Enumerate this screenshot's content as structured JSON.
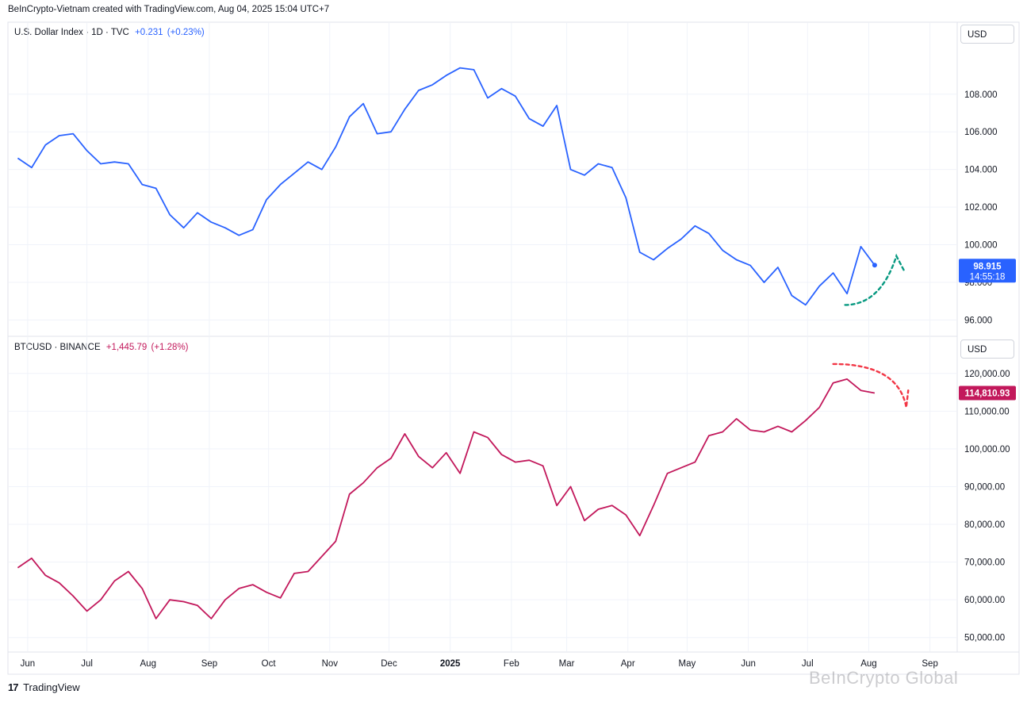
{
  "attribution": "BeInCrypto-Vietnam created with TradingView.com, Aug 04, 2025 15:04 UTC+7",
  "brand": {
    "logo": "17",
    "name": "TradingView"
  },
  "watermark": "BeInCrypto Global",
  "colors": {
    "dxy": "#2962ff",
    "btc": "#c2185b",
    "green_arrow": "#089981",
    "red_arrow": "#f23645",
    "grid": "#f0f3fa",
    "border": "#e0e3eb"
  },
  "chart_data": [
    {
      "type": "line",
      "symbol": "U.S. Dollar Index · 1D · TVC",
      "change": "+0.231",
      "change_pct": "(+0.23%)",
      "currency": "USD",
      "last_price": "98.915",
      "countdown": "14:55:18",
      "ylim": [
        95.3,
        110.9
      ],
      "yticks": [
        "96.000",
        "98.000",
        "100.000",
        "102.000",
        "104.000",
        "106.000",
        "108.000"
      ],
      "x": [
        "2024-05-27",
        "2024-06-03",
        "2024-06-10",
        "2024-06-17",
        "2024-06-24",
        "2024-07-01",
        "2024-07-08",
        "2024-07-15",
        "2024-07-22",
        "2024-07-29",
        "2024-08-05",
        "2024-08-12",
        "2024-08-19",
        "2024-08-26",
        "2024-09-02",
        "2024-09-09",
        "2024-09-16",
        "2024-09-23",
        "2024-09-30",
        "2024-10-07",
        "2024-10-14",
        "2024-10-21",
        "2024-10-28",
        "2024-11-04",
        "2024-11-11",
        "2024-11-18",
        "2024-11-25",
        "2024-12-02",
        "2024-12-09",
        "2024-12-16",
        "2024-12-23",
        "2024-12-30",
        "2025-01-06",
        "2025-01-13",
        "2025-01-20",
        "2025-01-27",
        "2025-02-03",
        "2025-02-10",
        "2025-02-17",
        "2025-02-24",
        "2025-03-03",
        "2025-03-10",
        "2025-03-17",
        "2025-03-24",
        "2025-03-31",
        "2025-04-07",
        "2025-04-14",
        "2025-04-21",
        "2025-04-28",
        "2025-05-05",
        "2025-05-12",
        "2025-05-19",
        "2025-05-26",
        "2025-06-02",
        "2025-06-09",
        "2025-06-16",
        "2025-06-23",
        "2025-06-30",
        "2025-07-07",
        "2025-07-14",
        "2025-07-21",
        "2025-07-28",
        "2025-08-04"
      ],
      "values": [
        104.6,
        104.1,
        105.3,
        105.8,
        105.9,
        105.0,
        104.3,
        104.4,
        104.3,
        103.2,
        103.0,
        101.6,
        100.9,
        101.7,
        101.2,
        100.9,
        100.5,
        100.8,
        102.4,
        103.2,
        103.8,
        104.4,
        104.0,
        105.2,
        106.8,
        107.5,
        105.9,
        106.0,
        107.2,
        108.2,
        108.5,
        109.0,
        109.4,
        109.3,
        107.8,
        108.3,
        107.9,
        106.7,
        106.3,
        107.4,
        104.0,
        103.7,
        104.3,
        104.1,
        102.5,
        99.6,
        99.2,
        99.8,
        100.3,
        101.0,
        100.6,
        99.7,
        99.2,
        98.9,
        98.0,
        98.8,
        97.3,
        96.8,
        97.8,
        98.5,
        97.4,
        99.9,
        98.915
      ],
      "x_labels": [
        {
          "text": "Jun",
          "date": "2024-06-01",
          "bold": false
        },
        {
          "text": "Jul",
          "date": "2024-07-01",
          "bold": false
        },
        {
          "text": "Aug",
          "date": "2024-08-01",
          "bold": false
        },
        {
          "text": "Sep",
          "date": "2024-09-01",
          "bold": false
        },
        {
          "text": "Oct",
          "date": "2024-10-01",
          "bold": false
        },
        {
          "text": "Nov",
          "date": "2024-11-01",
          "bold": false
        },
        {
          "text": "Dec",
          "date": "2024-12-01",
          "bold": false
        },
        {
          "text": "2025",
          "date": "2025-01-01",
          "bold": true
        },
        {
          "text": "Feb",
          "date": "2025-02-01",
          "bold": false
        },
        {
          "text": "Mar",
          "date": "2025-03-01",
          "bold": false
        },
        {
          "text": "Apr",
          "date": "2025-04-01",
          "bold": false
        },
        {
          "text": "May",
          "date": "2025-05-01",
          "bold": false
        },
        {
          "text": "Jun",
          "date": "2025-06-01",
          "bold": false
        },
        {
          "text": "Jul",
          "date": "2025-07-01",
          "bold": false
        },
        {
          "text": "Aug",
          "date": "2025-08-01",
          "bold": false
        },
        {
          "text": "Sep",
          "date": "2025-09-01",
          "bold": false
        }
      ],
      "annotation": {
        "style": "dashed-arrow-up",
        "color": "#089981",
        "from": [
          "2025-07-20",
          96.8
        ],
        "peak": [
          "2025-08-15",
          99.4
        ],
        "to": [
          "2025-08-19",
          98.6
        ]
      }
    },
    {
      "type": "line",
      "symbol": "BTCUSD · BINANCE",
      "change": "+1,445.79",
      "change_pct": "(+1.28%)",
      "currency": "USD",
      "last_price": "114,810.93",
      "ylim": [
        47000,
        125000
      ],
      "yticks": [
        "50,000.00",
        "60,000.00",
        "70,000.00",
        "80,000.00",
        "90,000.00",
        "100,000.00",
        "110,000.00",
        "120,000.00"
      ],
      "x": [
        "2024-05-27",
        "2024-06-03",
        "2024-06-10",
        "2024-06-17",
        "2024-06-24",
        "2024-07-01",
        "2024-07-08",
        "2024-07-15",
        "2024-07-22",
        "2024-07-29",
        "2024-08-05",
        "2024-08-12",
        "2024-08-19",
        "2024-08-26",
        "2024-09-02",
        "2024-09-09",
        "2024-09-16",
        "2024-09-23",
        "2024-09-30",
        "2024-10-07",
        "2024-10-14",
        "2024-10-21",
        "2024-10-28",
        "2024-11-04",
        "2024-11-11",
        "2024-11-18",
        "2024-11-25",
        "2024-12-02",
        "2024-12-09",
        "2024-12-16",
        "2024-12-23",
        "2024-12-30",
        "2025-01-06",
        "2025-01-13",
        "2025-01-20",
        "2025-01-27",
        "2025-02-03",
        "2025-02-10",
        "2025-02-17",
        "2025-02-24",
        "2025-03-03",
        "2025-03-10",
        "2025-03-17",
        "2025-03-24",
        "2025-03-31",
        "2025-04-07",
        "2025-04-14",
        "2025-04-21",
        "2025-04-28",
        "2025-05-05",
        "2025-05-12",
        "2025-05-19",
        "2025-05-26",
        "2025-06-02",
        "2025-06-09",
        "2025-06-16",
        "2025-06-23",
        "2025-06-30",
        "2025-07-07",
        "2025-07-14",
        "2025-07-21",
        "2025-07-28",
        "2025-08-04"
      ],
      "values": [
        68500,
        71000,
        66500,
        64500,
        61000,
        57000,
        60000,
        65000,
        67500,
        63000,
        55000,
        60000,
        59500,
        58500,
        55000,
        60000,
        63000,
        64000,
        62000,
        60500,
        67000,
        67500,
        71500,
        75500,
        88000,
        91000,
        95000,
        97500,
        104000,
        98000,
        95000,
        99000,
        93500,
        104500,
        103000,
        98500,
        96500,
        97000,
        95500,
        85000,
        90000,
        81000,
        84000,
        85000,
        82500,
        77000,
        85000,
        93500,
        95000,
        96500,
        103500,
        104500,
        108000,
        105000,
        104500,
        106000,
        104500,
        107500,
        111000,
        117500,
        118500,
        115500,
        114810.93
      ],
      "annotation": {
        "style": "dashed-arrow-down",
        "color": "#f23645",
        "from": [
          "2025-07-14",
          122500
        ],
        "peak": [
          "2025-08-20",
          111000
        ],
        "to": [
          "2025-08-21",
          115500
        ]
      }
    }
  ]
}
